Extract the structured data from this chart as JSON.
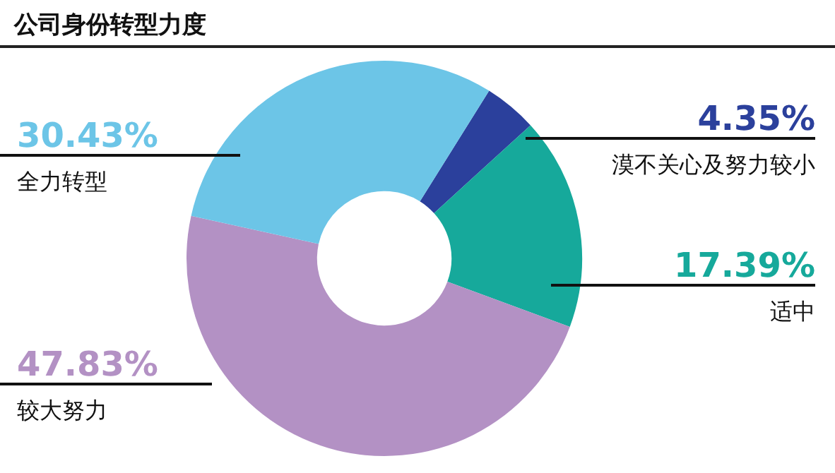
{
  "chart_data": {
    "type": "donut",
    "title": "公司身份转型力度",
    "categories": [
      "漠不关心及努力较小",
      "适中",
      "较大努力",
      "全力转型"
    ],
    "values": [
      4.35,
      17.39,
      47.83,
      30.43
    ],
    "value_labels": [
      "4.35%",
      "17.39%",
      "47.83%",
      "30.43%"
    ],
    "colors": [
      "#2b409c",
      "#16a99b",
      "#b391c4",
      "#6cc5e7"
    ],
    "legend": false
  }
}
